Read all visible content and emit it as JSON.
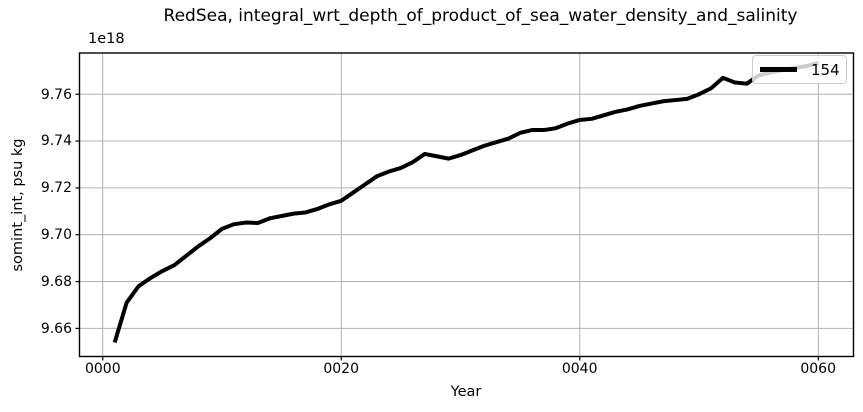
{
  "chart_data": {
    "type": "line",
    "title": "RedSea, integral_wrt_depth_of_product_of_sea_water_density_and_salinity",
    "xlabel": "Year",
    "ylabel": "somint_int, psu kg",
    "offset_label": "1e18",
    "units_multiplier": "1e18",
    "grid": true,
    "legend": {
      "label": "154",
      "position": "upper right"
    },
    "line_color": "#000000",
    "line_width": 4,
    "grid_color": "#b0b0b0",
    "spine_color": "#000000",
    "xlim": [
      -1.95,
      62.95
    ],
    "ylim": [
      9.648,
      9.7776
    ],
    "x_ticks": {
      "values": [
        0,
        20,
        40,
        60
      ],
      "labels": [
        "0000",
        "0020",
        "0040",
        "0060"
      ]
    },
    "y_ticks": {
      "values": [
        9.66,
        9.68,
        9.7,
        9.72,
        9.74,
        9.76
      ],
      "labels": [
        "9.66",
        "9.68",
        "9.70",
        "9.72",
        "9.74",
        "9.76"
      ]
    },
    "x": [
      1,
      2,
      3,
      4,
      5,
      6,
      7,
      8,
      9,
      10,
      11,
      12,
      13,
      14,
      15,
      16,
      17,
      18,
      19,
      20,
      21,
      22,
      23,
      24,
      25,
      26,
      27,
      28,
      29,
      30,
      31,
      32,
      33,
      34,
      35,
      36,
      37,
      38,
      39,
      40,
      41,
      42,
      43,
      44,
      45,
      46,
      47,
      48,
      49,
      50,
      51,
      52,
      53,
      54,
      55,
      56,
      57,
      58,
      59,
      60
    ],
    "series": [
      {
        "name": "154",
        "values": [
          9.654,
          9.671,
          9.678,
          9.6815,
          9.6845,
          9.687,
          9.691,
          9.695,
          9.6985,
          9.7025,
          9.7045,
          9.7052,
          9.705,
          9.707,
          9.708,
          9.709,
          9.7095,
          9.711,
          9.713,
          9.7145,
          9.718,
          9.7215,
          9.725,
          9.727,
          9.7285,
          9.731,
          9.7345,
          9.7335,
          9.7325,
          9.734,
          9.736,
          9.738,
          9.7395,
          9.741,
          9.7435,
          9.7447,
          9.7447,
          9.7455,
          9.7475,
          9.749,
          9.7495,
          9.751,
          9.7525,
          9.7535,
          9.755,
          9.756,
          9.757,
          9.7575,
          9.758,
          9.76,
          9.7625,
          9.767,
          9.765,
          9.7645,
          9.768,
          9.7693,
          9.7703,
          9.7712,
          9.772,
          9.7733
        ]
      }
    ]
  }
}
